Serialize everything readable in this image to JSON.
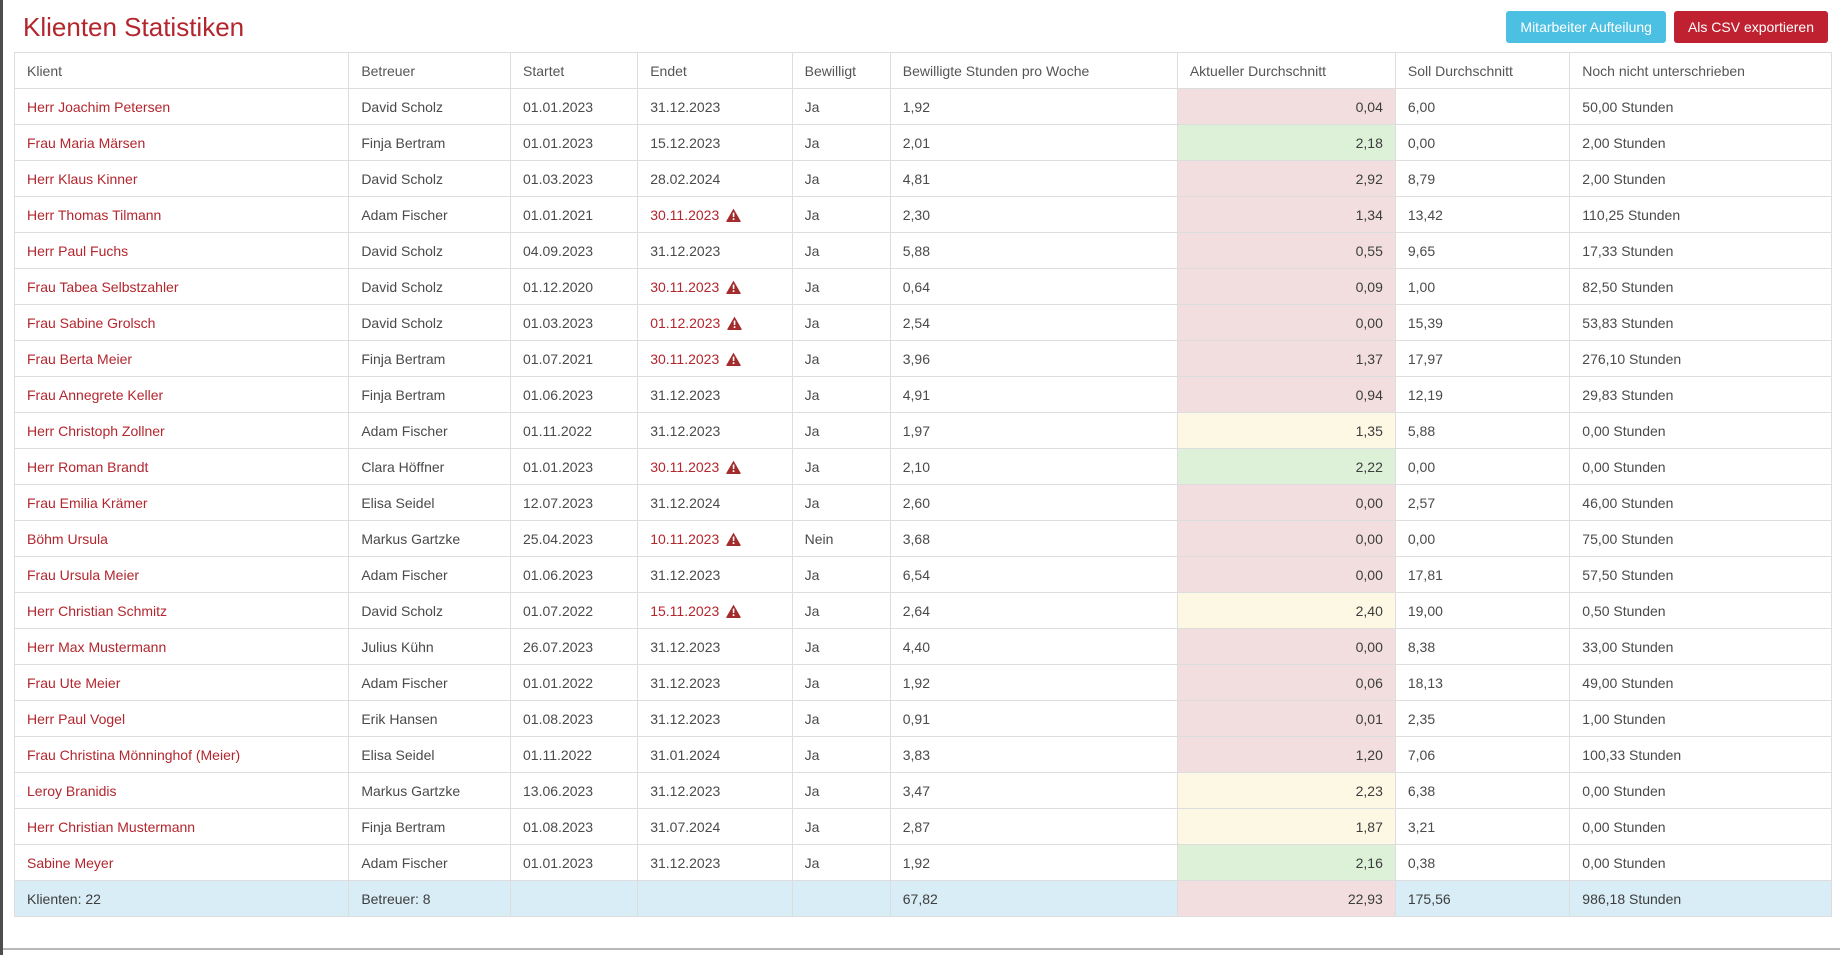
{
  "page_title": "Klienten Statistiken",
  "toolbar": {
    "mitarbeiter_button": "Mitarbeiter Aufteilung",
    "csv_button": "Als CSV exportieren"
  },
  "colors": {
    "title_red": "#b3262e",
    "btn_info": "#4cc0e2",
    "btn_danger": "#bf2130",
    "danger_bg": "#f2dede",
    "success_bg": "#ddf0d8",
    "warning_bg": "#fcf8e3",
    "info_bg": "#d9edf7",
    "warning_icon": "#a32b2b"
  },
  "table": {
    "fields": [
      "klient",
      "betreuer",
      "startet",
      "endet",
      "bewilligt",
      "stunden_pro_woche",
      "aktueller_durchschnitt",
      "soll_durchschnitt",
      "noch_nicht_unterschrieben"
    ],
    "columns": [
      "Klient",
      "Betreuer",
      "Startet",
      "Endet",
      "Bewilligt",
      "Bewilligte Stunden pro Woche",
      "Aktueller Durchschnitt",
      "Soll Durchschnitt",
      "Noch nicht unterschrieben"
    ],
    "rows": [
      {
        "klient": "Herr Joachim Petersen",
        "betreuer": "David Scholz",
        "startet": "01.01.2023",
        "endet": "31.12.2023",
        "endet_warning": false,
        "bewilligt": "Ja",
        "stunden_pro_woche": "1,92",
        "aktueller_durchschnitt": "0,04",
        "aktueller_status": "danger",
        "soll_durchschnitt": "6,00",
        "noch_nicht_unterschrieben": "50,00 Stunden"
      },
      {
        "klient": "Frau Maria Märsen",
        "betreuer": "Finja Bertram",
        "startet": "01.01.2023",
        "endet": "15.12.2023",
        "endet_warning": false,
        "bewilligt": "Ja",
        "stunden_pro_woche": "2,01",
        "aktueller_durchschnitt": "2,18",
        "aktueller_status": "success",
        "soll_durchschnitt": "0,00",
        "noch_nicht_unterschrieben": "2,00 Stunden"
      },
      {
        "klient": "Herr Klaus Kinner",
        "betreuer": "David Scholz",
        "startet": "01.03.2023",
        "endet": "28.02.2024",
        "endet_warning": false,
        "bewilligt": "Ja",
        "stunden_pro_woche": "4,81",
        "aktueller_durchschnitt": "2,92",
        "aktueller_status": "danger",
        "soll_durchschnitt": "8,79",
        "noch_nicht_unterschrieben": "2,00 Stunden"
      },
      {
        "klient": "Herr Thomas Tilmann",
        "betreuer": "Adam Fischer",
        "startet": "01.01.2021",
        "endet": "30.11.2023",
        "endet_warning": true,
        "bewilligt": "Ja",
        "stunden_pro_woche": "2,30",
        "aktueller_durchschnitt": "1,34",
        "aktueller_status": "danger",
        "soll_durchschnitt": "13,42",
        "noch_nicht_unterschrieben": "110,25 Stunden"
      },
      {
        "klient": "Herr Paul Fuchs",
        "betreuer": "David Scholz",
        "startet": "04.09.2023",
        "endet": "31.12.2023",
        "endet_warning": false,
        "bewilligt": "Ja",
        "stunden_pro_woche": "5,88",
        "aktueller_durchschnitt": "0,55",
        "aktueller_status": "danger",
        "soll_durchschnitt": "9,65",
        "noch_nicht_unterschrieben": "17,33 Stunden"
      },
      {
        "klient": "Frau Tabea Selbstzahler",
        "betreuer": "David Scholz",
        "startet": "01.12.2020",
        "endet": "30.11.2023",
        "endet_warning": true,
        "bewilligt": "Ja",
        "stunden_pro_woche": "0,64",
        "aktueller_durchschnitt": "0,09",
        "aktueller_status": "danger",
        "soll_durchschnitt": "1,00",
        "noch_nicht_unterschrieben": "82,50 Stunden"
      },
      {
        "klient": "Frau Sabine Grolsch",
        "betreuer": "David Scholz",
        "startet": "01.03.2023",
        "endet": "01.12.2023",
        "endet_warning": true,
        "bewilligt": "Ja",
        "stunden_pro_woche": "2,54",
        "aktueller_durchschnitt": "0,00",
        "aktueller_status": "danger",
        "soll_durchschnitt": "15,39",
        "noch_nicht_unterschrieben": "53,83 Stunden"
      },
      {
        "klient": "Frau Berta Meier",
        "betreuer": "Finja Bertram",
        "startet": "01.07.2021",
        "endet": "30.11.2023",
        "endet_warning": true,
        "bewilligt": "Ja",
        "stunden_pro_woche": "3,96",
        "aktueller_durchschnitt": "1,37",
        "aktueller_status": "danger",
        "soll_durchschnitt": "17,97",
        "noch_nicht_unterschrieben": "276,10 Stunden"
      },
      {
        "klient": "Frau Annegrete Keller",
        "betreuer": "Finja Bertram",
        "startet": "01.06.2023",
        "endet": "31.12.2023",
        "endet_warning": false,
        "bewilligt": "Ja",
        "stunden_pro_woche": "4,91",
        "aktueller_durchschnitt": "0,94",
        "aktueller_status": "danger",
        "soll_durchschnitt": "12,19",
        "noch_nicht_unterschrieben": "29,83 Stunden"
      },
      {
        "klient": "Herr Christoph Zollner",
        "betreuer": "Adam Fischer",
        "startet": "01.11.2022",
        "endet": "31.12.2023",
        "endet_warning": false,
        "bewilligt": "Ja",
        "stunden_pro_woche": "1,97",
        "aktueller_durchschnitt": "1,35",
        "aktueller_status": "warning",
        "soll_durchschnitt": "5,88",
        "noch_nicht_unterschrieben": "0,00 Stunden"
      },
      {
        "klient": "Herr Roman Brandt",
        "betreuer": "Clara Höffner",
        "startet": "01.01.2023",
        "endet": "30.11.2023",
        "endet_warning": true,
        "bewilligt": "Ja",
        "stunden_pro_woche": "2,10",
        "aktueller_durchschnitt": "2,22",
        "aktueller_status": "success",
        "soll_durchschnitt": "0,00",
        "noch_nicht_unterschrieben": "0,00 Stunden"
      },
      {
        "klient": "Frau Emilia Krämer",
        "betreuer": "Elisa Seidel",
        "startet": "12.07.2023",
        "endet": "31.12.2024",
        "endet_warning": false,
        "bewilligt": "Ja",
        "stunden_pro_woche": "2,60",
        "aktueller_durchschnitt": "0,00",
        "aktueller_status": "danger",
        "soll_durchschnitt": "2,57",
        "noch_nicht_unterschrieben": "46,00 Stunden"
      },
      {
        "klient": "Böhm Ursula",
        "betreuer": "Markus Gartzke",
        "startet": "25.04.2023",
        "endet": "10.11.2023",
        "endet_warning": true,
        "bewilligt": "Nein",
        "stunden_pro_woche": "3,68",
        "aktueller_durchschnitt": "0,00",
        "aktueller_status": "danger",
        "soll_durchschnitt": "0,00",
        "noch_nicht_unterschrieben": "75,00 Stunden"
      },
      {
        "klient": "Frau Ursula Meier",
        "betreuer": "Adam Fischer",
        "startet": "01.06.2023",
        "endet": "31.12.2023",
        "endet_warning": false,
        "bewilligt": "Ja",
        "stunden_pro_woche": "6,54",
        "aktueller_durchschnitt": "0,00",
        "aktueller_status": "danger",
        "soll_durchschnitt": "17,81",
        "noch_nicht_unterschrieben": "57,50 Stunden"
      },
      {
        "klient": "Herr Christian Schmitz",
        "betreuer": "David Scholz",
        "startet": "01.07.2022",
        "endet": "15.11.2023",
        "endet_warning": true,
        "bewilligt": "Ja",
        "stunden_pro_woche": "2,64",
        "aktueller_durchschnitt": "2,40",
        "aktueller_status": "warning",
        "soll_durchschnitt": "19,00",
        "noch_nicht_unterschrieben": "0,50 Stunden"
      },
      {
        "klient": "Herr Max Mustermann",
        "betreuer": "Julius Kühn",
        "startet": "26.07.2023",
        "endet": "31.12.2023",
        "endet_warning": false,
        "bewilligt": "Ja",
        "stunden_pro_woche": "4,40",
        "aktueller_durchschnitt": "0,00",
        "aktueller_status": "danger",
        "soll_durchschnitt": "8,38",
        "noch_nicht_unterschrieben": "33,00 Stunden"
      },
      {
        "klient": "Frau Ute Meier",
        "betreuer": "Adam Fischer",
        "startet": "01.01.2022",
        "endet": "31.12.2023",
        "endet_warning": false,
        "bewilligt": "Ja",
        "stunden_pro_woche": "1,92",
        "aktueller_durchschnitt": "0,06",
        "aktueller_status": "danger",
        "soll_durchschnitt": "18,13",
        "noch_nicht_unterschrieben": "49,00 Stunden"
      },
      {
        "klient": "Herr Paul Vogel",
        "betreuer": "Erik Hansen",
        "startet": "01.08.2023",
        "endet": "31.12.2023",
        "endet_warning": false,
        "bewilligt": "Ja",
        "stunden_pro_woche": "0,91",
        "aktueller_durchschnitt": "0,01",
        "aktueller_status": "danger",
        "soll_durchschnitt": "2,35",
        "noch_nicht_unterschrieben": "1,00 Stunden"
      },
      {
        "klient": "Frau Christina Mönninghof (Meier)",
        "betreuer": "Elisa Seidel",
        "startet": "01.11.2022",
        "endet": "31.01.2024",
        "endet_warning": false,
        "bewilligt": "Ja",
        "stunden_pro_woche": "3,83",
        "aktueller_durchschnitt": "1,20",
        "aktueller_status": "danger",
        "soll_durchschnitt": "7,06",
        "noch_nicht_unterschrieben": "100,33 Stunden"
      },
      {
        "klient": "Leroy Branidis",
        "betreuer": "Markus Gartzke",
        "startet": "13.06.2023",
        "endet": "31.12.2023",
        "endet_warning": false,
        "bewilligt": "Ja",
        "stunden_pro_woche": "3,47",
        "aktueller_durchschnitt": "2,23",
        "aktueller_status": "warning",
        "soll_durchschnitt": "6,38",
        "noch_nicht_unterschrieben": "0,00 Stunden"
      },
      {
        "klient": "Herr Christian Mustermann",
        "betreuer": "Finja Bertram",
        "startet": "01.08.2023",
        "endet": "31.07.2024",
        "endet_warning": false,
        "bewilligt": "Ja",
        "stunden_pro_woche": "2,87",
        "aktueller_durchschnitt": "1,87",
        "aktueller_status": "warning",
        "soll_durchschnitt": "3,21",
        "noch_nicht_unterschrieben": "0,00 Stunden"
      },
      {
        "klient": "Sabine Meyer",
        "betreuer": "Adam Fischer",
        "startet": "01.01.2023",
        "endet": "31.12.2023",
        "endet_warning": false,
        "bewilligt": "Ja",
        "stunden_pro_woche": "1,92",
        "aktueller_durchschnitt": "2,16",
        "aktueller_status": "success",
        "soll_durchschnitt": "0,38",
        "noch_nicht_unterschrieben": "0,00 Stunden"
      }
    ],
    "footer": {
      "klient": "Klienten: 22",
      "betreuer": "Betreuer: 8",
      "startet": "",
      "endet": "",
      "endet_warning": false,
      "bewilligt": "",
      "stunden_pro_woche": "67,82",
      "aktueller_durchschnitt": "22,93",
      "aktueller_status": "danger",
      "soll_durchschnitt": "175,56",
      "noch_nicht_unterschrieben": "986,18 Stunden"
    }
  }
}
